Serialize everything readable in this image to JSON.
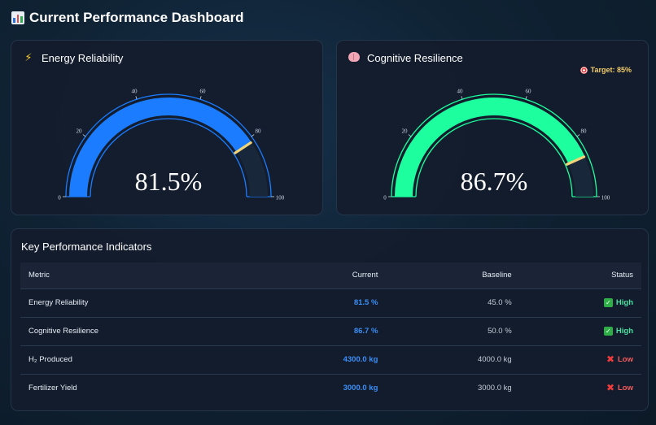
{
  "page": {
    "title": "Current Performance Dashboard",
    "title_icon": "bar-chart-icon"
  },
  "gauges": [
    {
      "title": "Energy Reliability",
      "icon": "lightning-icon",
      "value": 81.5,
      "display": "81.5%",
      "min": 0,
      "max": 100,
      "color": "#1b7cff",
      "needle_color": "#f1d477",
      "target_label": "",
      "ticks": [
        "0",
        "20",
        "40",
        "60",
        "80",
        "100"
      ]
    },
    {
      "title": "Cognitive Resilience",
      "icon": "brain-icon",
      "value": 86.7,
      "display": "86.7%",
      "min": 0,
      "max": 100,
      "color": "#1dff9e",
      "needle_color": "#f1d477",
      "target_label": "Target: 85%",
      "target_icon": "dart-target-icon",
      "ticks": [
        "0",
        "20",
        "40",
        "60",
        "80",
        "100"
      ]
    }
  ],
  "kpi": {
    "title": "Key Performance Indicators",
    "columns": [
      "Metric",
      "Current",
      "Baseline",
      "Status"
    ],
    "rows": [
      {
        "metric": "Energy Reliability",
        "current": "81.5 %",
        "baseline": "45.0 %",
        "status": "High",
        "status_icon": "check-icon"
      },
      {
        "metric": "Cognitive Resilience",
        "current": "86.7 %",
        "baseline": "50.0 %",
        "status": "High",
        "status_icon": "check-icon"
      },
      {
        "metric": "H₂ Produced",
        "current": "4300.0 kg",
        "baseline": "4000.0 kg",
        "status": "Low",
        "status_icon": "cross-icon"
      },
      {
        "metric": "Fertilizer Yield",
        "current": "3000.0 kg",
        "baseline": "3000.0 kg",
        "status": "Low",
        "status_icon": "cross-icon"
      }
    ]
  },
  "colors": {
    "high": "#47e0a0",
    "low": "#f25c5c",
    "current_value": "#3b8ef5"
  }
}
